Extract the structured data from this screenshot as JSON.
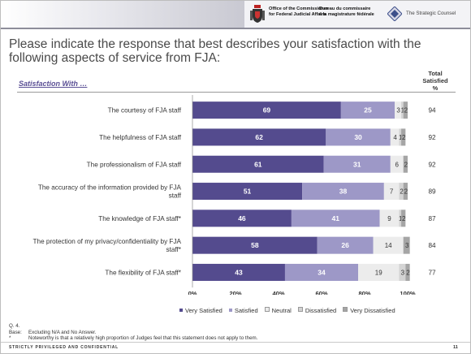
{
  "header": {
    "office_en_1": "Office of the Commissioner",
    "office_en_2": "for Federal Judicial Affairs",
    "office_fr_1": "Bureau du commissaire",
    "office_fr_2": "à la magistrature fédérale",
    "firm": "The Strategic Counsel"
  },
  "title": "Please indicate the response that best describes your satisfaction with the following aspects of service from FJA:",
  "subtitle": "Satisfaction With …",
  "total_header": [
    "Total",
    "Satisfied",
    "%"
  ],
  "colors": {
    "very_satisfied": "#544b8e",
    "satisfied": "#9d98c7",
    "neutral": "#ececec",
    "dissatisfied": "#d4d4d4",
    "very_dissatisfied": "#a5a5a5"
  },
  "chart_data": {
    "type": "bar",
    "orientation": "horizontal",
    "stacked": true,
    "categories": [
      "The courtesy of FJA staff",
      "The helpfulness of FJA staff",
      "The professionalism of FJA staff",
      "The accuracy of the information provided by FJA staff",
      "The knowledge of FJA staff*",
      "The protection of my privacy/confidentiality by FJA staff*",
      "The flexibility of FJA staff*"
    ],
    "category_lines": [
      [
        "The courtesy of FJA staff"
      ],
      [
        "The helpfulness of FJA staff"
      ],
      [
        "The professionalism of FJA staff"
      ],
      [
        "The accuracy of the information provided by FJA",
        "staff"
      ],
      [
        "The knowledge of FJA staff*"
      ],
      [
        "The protection of my privacy/confidentiality by FJA",
        "staff*"
      ],
      [
        "The flexibility of FJA staff*"
      ]
    ],
    "series": [
      {
        "name": "Very Satisfied",
        "values": [
          69,
          62,
          61,
          51,
          46,
          58,
          43
        ]
      },
      {
        "name": "Satisfied",
        "values": [
          25,
          30,
          31,
          38,
          41,
          26,
          34
        ]
      },
      {
        "name": "Neutral",
        "values": [
          3,
          4,
          6,
          7,
          9,
          14,
          19
        ]
      },
      {
        "name": "Dissatisfied",
        "values": [
          1,
          1,
          0,
          2,
          1,
          0,
          3
        ]
      },
      {
        "name": "Very Dissatisfied",
        "values": [
          2,
          2,
          2,
          2,
          2,
          3,
          2
        ]
      }
    ],
    "labels": [
      [
        "69",
        "25",
        "3",
        "1",
        "2"
      ],
      [
        "62",
        "30",
        "4",
        "1",
        "2"
      ],
      [
        "61",
        "31",
        "6",
        "",
        "2"
      ],
      [
        "51",
        "38",
        "7",
        "2",
        "2"
      ],
      [
        "46",
        "41",
        "9",
        "1",
        "2"
      ],
      [
        "58",
        "26",
        "14",
        "",
        "3"
      ],
      [
        "43",
        "34",
        "19",
        "3",
        "2"
      ]
    ],
    "total_satisfied": [
      94,
      92,
      92,
      89,
      87,
      84,
      77
    ],
    "xlim": [
      0,
      100
    ],
    "xticks": [
      "0%",
      "20%",
      "40%",
      "60%",
      "80%",
      "100%"
    ],
    "grid": false,
    "legend_position": "bottom"
  },
  "notes": [
    {
      "key": "Q. 4.",
      "text": ""
    },
    {
      "key": "Base:",
      "text": "Excluding N/A and No Answer."
    },
    {
      "key": "*",
      "text": "Noteworthy is that a relatively high proportion of Judges feel that this statement does not apply to them."
    }
  ],
  "footer": "STRICTLY PRIVILEGED AND CONFIDENTIAL",
  "page_number": "11"
}
